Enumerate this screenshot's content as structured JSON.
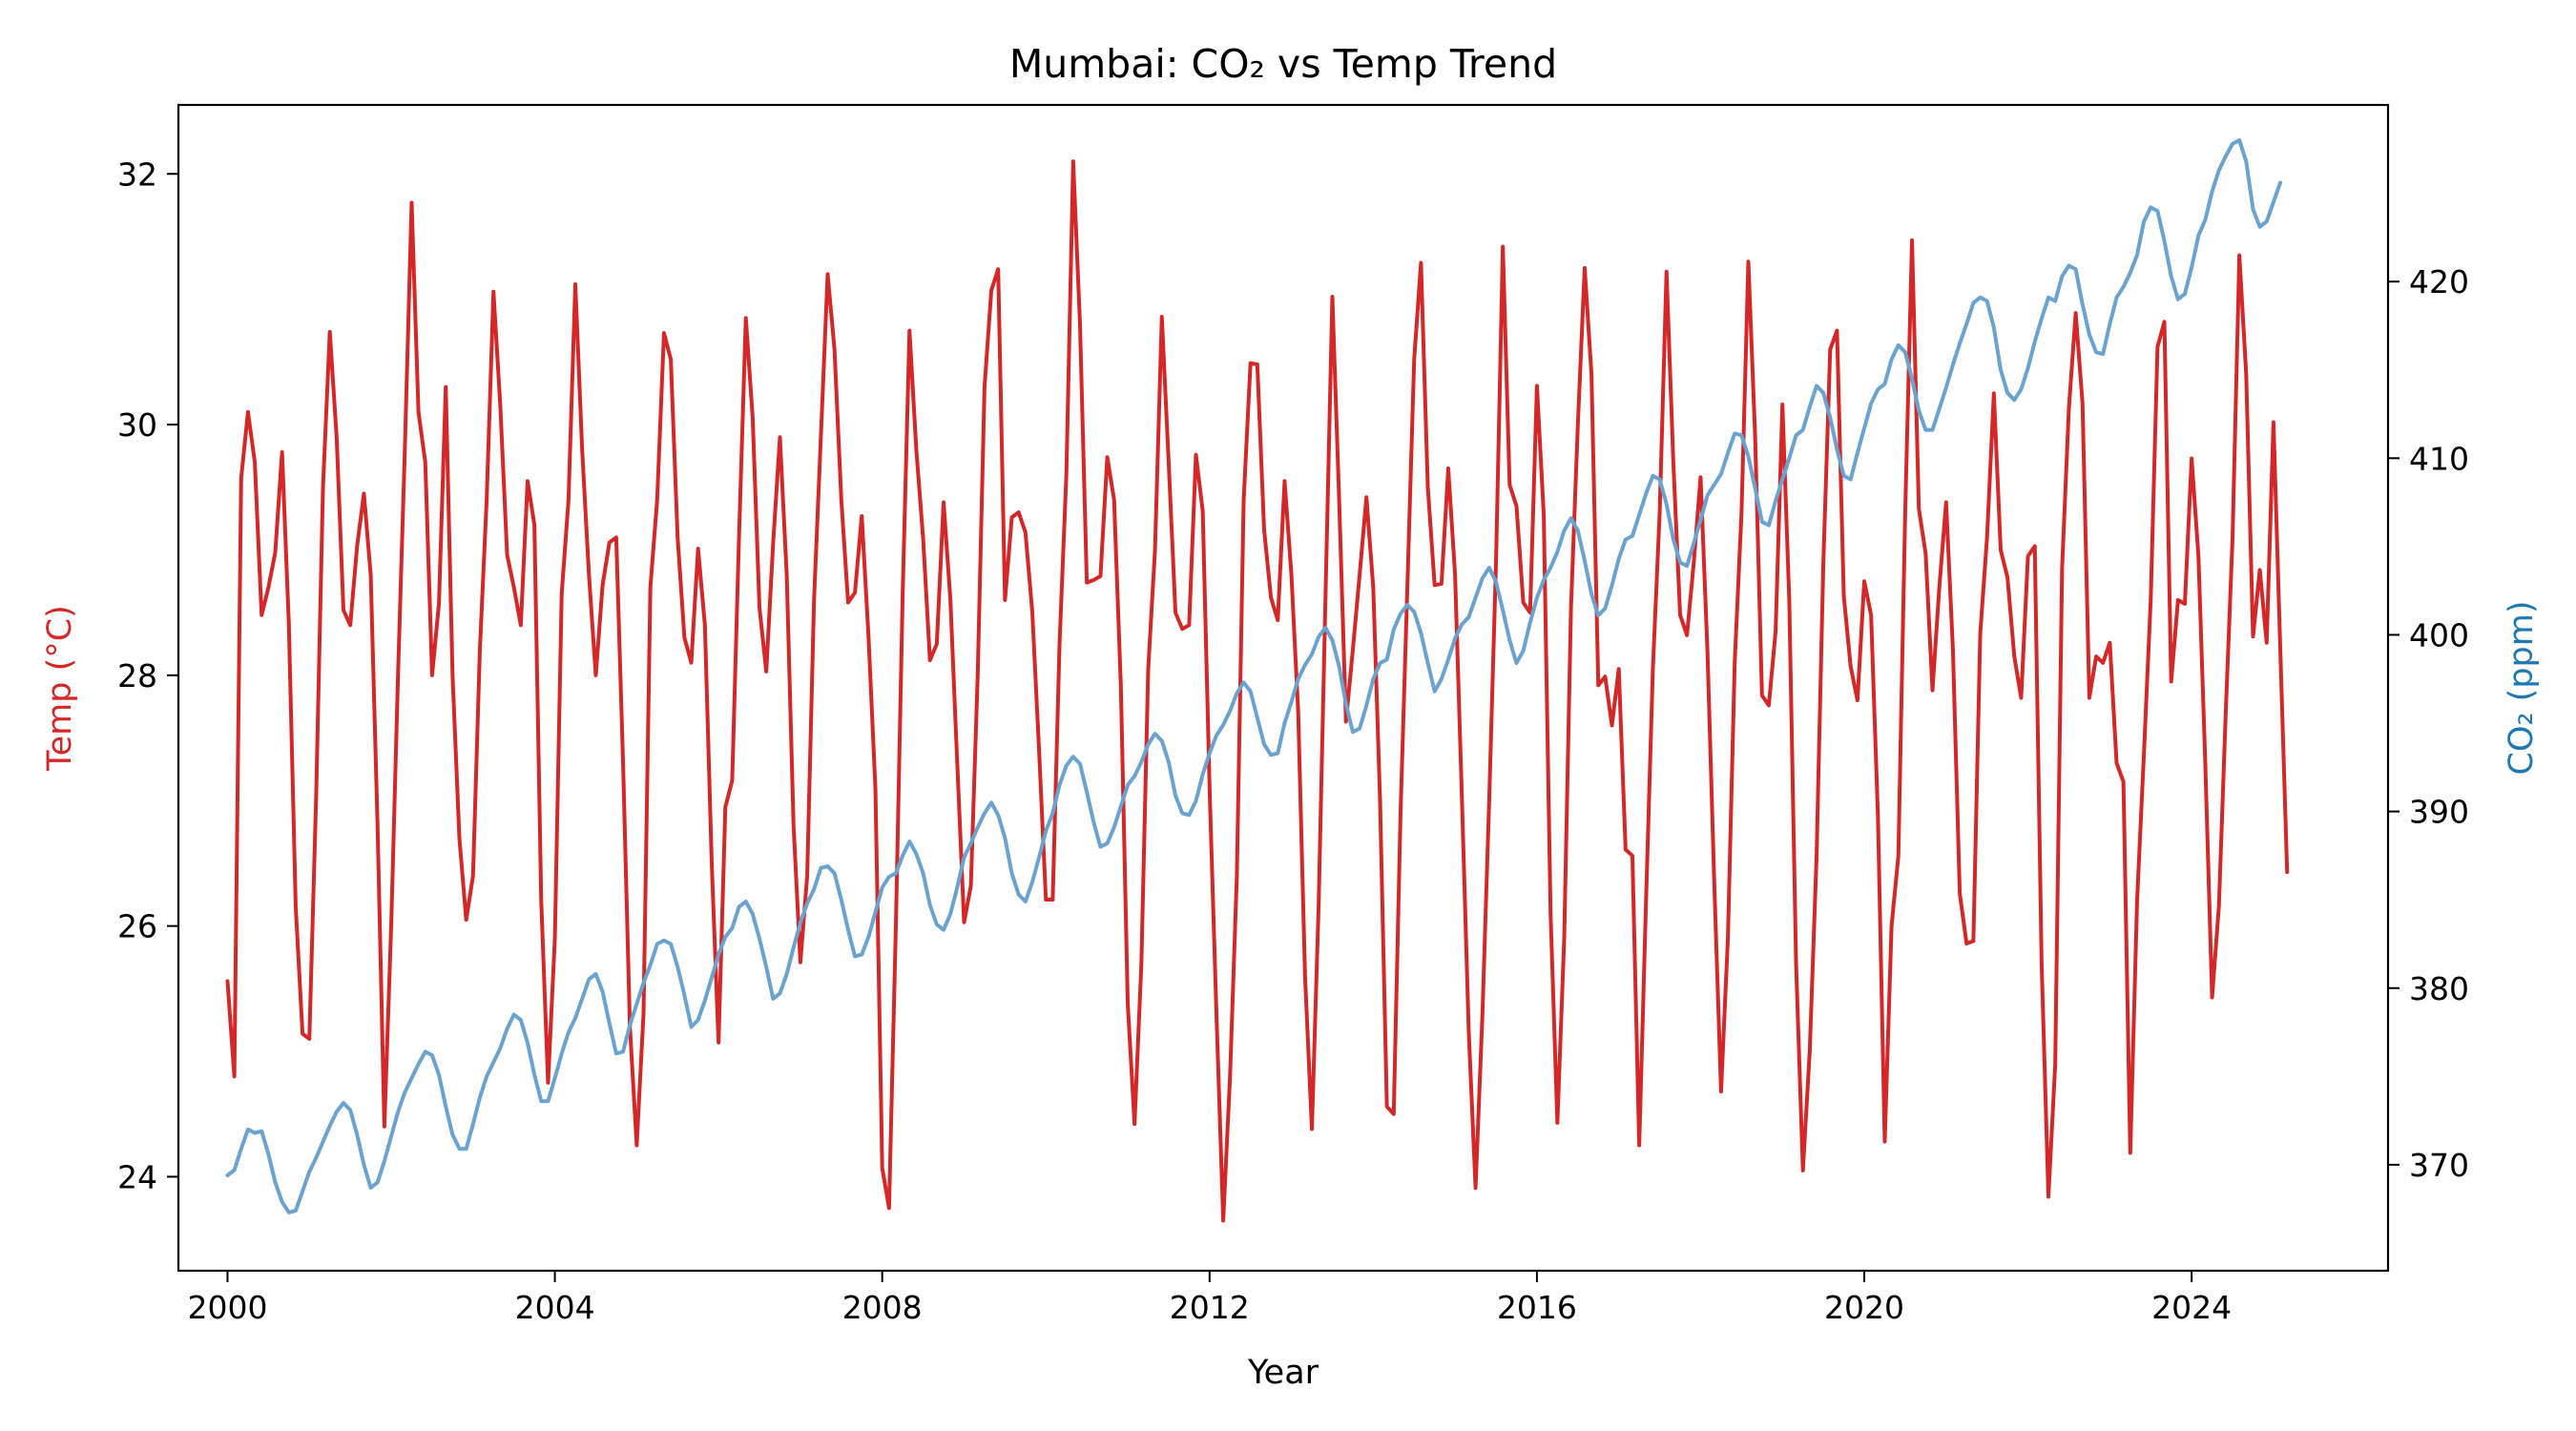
{
  "chart_data": {
    "type": "line",
    "title": "Mumbai: CO₂ vs Temp Trend",
    "xlabel": "Year",
    "ylabel_left": "Temp (°C)",
    "ylabel_right": "CO₂ (ppm)",
    "x_ticks": [
      2000,
      2004,
      2008,
      2012,
      2016,
      2020,
      2024
    ],
    "y_left_ticks": [
      24,
      26,
      28,
      30,
      32
    ],
    "y_right_ticks": [
      370,
      380,
      390,
      400,
      410,
      420
    ],
    "xlim": [
      1999.4,
      2026.4
    ],
    "ylim_left": [
      23.25,
      32.55
    ],
    "ylim_right": [
      364,
      430
    ],
    "grid": false,
    "colors": {
      "temp": "#d62728",
      "co2": "#6aa3cf"
    },
    "series": [
      {
        "axis": "left",
        "start_year": 2000,
        "step": "monthly",
        "values": [
          25.56,
          24.8,
          29.57,
          30.1,
          29.7,
          28.48,
          28.7,
          28.98,
          29.78,
          28.4,
          26.15,
          25.14,
          25.1,
          27.04,
          29.5,
          30.74,
          29.9,
          28.52,
          28.4,
          29.03,
          29.45,
          28.8,
          26.8,
          24.4,
          26.0,
          28.0,
          29.8,
          31.77,
          30.1,
          29.7,
          28.0,
          28.57,
          30.3,
          28.0,
          26.7,
          26.05,
          26.4,
          28.2,
          29.4,
          31.06,
          30.15,
          28.96,
          28.7,
          28.4,
          29.55,
          29.2,
          26.2,
          24.75,
          25.9,
          28.65,
          29.4,
          31.12,
          29.8,
          28.8,
          28.0,
          28.72,
          29.06,
          29.1,
          27.3,
          25.2,
          24.25,
          25.3,
          28.7,
          29.4,
          30.73,
          30.52,
          29.1,
          28.3,
          28.1,
          29.01,
          28.4,
          26.5,
          25.07,
          26.95,
          27.16,
          29.1,
          30.85,
          30.06,
          28.54,
          28.03,
          29.05,
          29.9,
          28.8,
          26.8,
          25.71,
          26.4,
          28.6,
          29.9,
          31.2,
          30.6,
          29.4,
          28.58,
          28.66,
          29.27,
          28.3,
          27.1,
          24.07,
          23.75,
          26.0,
          28.65,
          30.75,
          29.8,
          29.09,
          28.12,
          28.25,
          29.38,
          28.6,
          27.3,
          26.03,
          26.32,
          28.0,
          30.3,
          31.07,
          31.24,
          28.6,
          29.26,
          29.3,
          29.14,
          28.51,
          27.4,
          26.21,
          26.21,
          28.25,
          29.6,
          32.1,
          30.8,
          28.74,
          28.76,
          28.79,
          29.74,
          29.4,
          27.9,
          25.38,
          24.42,
          25.7,
          28.05,
          29.0,
          30.86,
          29.7,
          28.5,
          28.37,
          28.4,
          29.76,
          29.31,
          27.1,
          25.31,
          23.65,
          24.8,
          26.4,
          29.4,
          30.49,
          30.48,
          29.16,
          28.62,
          28.44,
          29.55,
          28.8,
          27.7,
          25.6,
          24.38,
          26.18,
          28.63,
          31.02,
          29.4,
          27.63,
          28.2,
          28.8,
          29.42,
          28.7,
          27.0,
          24.56,
          24.5,
          26.9,
          28.7,
          30.52,
          31.29,
          29.5,
          28.72,
          28.73,
          29.65,
          28.8,
          27.02,
          25.16,
          23.91,
          25.28,
          27.0,
          28.9,
          31.42,
          29.52,
          29.35,
          28.58,
          28.5,
          30.31,
          29.28,
          26.1,
          24.43,
          25.9,
          28.55,
          30.0,
          31.25,
          30.4,
          27.92,
          27.99,
          27.6,
          28.05,
          26.61,
          26.56,
          24.25,
          26.2,
          28.05,
          29.3,
          31.22,
          29.7,
          28.48,
          28.32,
          28.9,
          29.58,
          28.2,
          26.35,
          24.68,
          25.9,
          28.1,
          29.3,
          31.3,
          29.9,
          27.84,
          27.76,
          28.35,
          30.16,
          28.6,
          25.7,
          24.05,
          25.0,
          26.55,
          28.9,
          30.6,
          30.75,
          28.63,
          28.07,
          27.8,
          28.75,
          28.48,
          26.88,
          24.28,
          26.0,
          26.56,
          29.3,
          31.47,
          29.33,
          28.97,
          27.88,
          28.7,
          29.38,
          28.2,
          26.26,
          25.86,
          25.88,
          28.33,
          29.1,
          30.25,
          29.0,
          28.78,
          28.15,
          27.82,
          28.95,
          29.03,
          25.71,
          23.84,
          24.9,
          28.85,
          30.13,
          30.89,
          30.17,
          27.82,
          28.15,
          28.1,
          28.26,
          27.3,
          27.15,
          24.19,
          26.2,
          27.37,
          28.6,
          30.62,
          30.82,
          27.95,
          28.6,
          28.57,
          29.73,
          28.95,
          27.3,
          25.43,
          26.16,
          27.7,
          29.1,
          31.35,
          30.4,
          28.31,
          28.84,
          28.26,
          30.02,
          28.21,
          26.43
        ]
      },
      {
        "axis": "right",
        "start_year": 2000,
        "step": "monthly",
        "values": [
          369.4,
          369.7,
          370.9,
          372.0,
          371.8,
          371.9,
          370.6,
          369.0,
          367.9,
          367.3,
          367.4,
          368.5,
          369.6,
          370.4,
          371.3,
          372.2,
          373.0,
          373.5,
          373.1,
          371.7,
          370.0,
          368.7,
          369.0,
          370.2,
          371.6,
          373.0,
          374.1,
          374.9,
          375.7,
          376.4,
          376.2,
          375.1,
          373.3,
          371.7,
          370.9,
          370.9,
          372.3,
          373.8,
          375.0,
          375.8,
          376.6,
          377.7,
          378.5,
          378.2,
          376.9,
          375.1,
          373.6,
          373.6,
          374.9,
          376.3,
          377.5,
          378.3,
          379.4,
          380.5,
          380.8,
          379.8,
          378.0,
          376.3,
          376.4,
          377.9,
          379.1,
          380.3,
          381.3,
          382.5,
          382.7,
          382.5,
          381.2,
          379.6,
          377.8,
          378.2,
          379.3,
          380.6,
          381.9,
          382.9,
          383.4,
          384.6,
          384.9,
          384.2,
          382.8,
          381.2,
          379.4,
          379.7,
          380.8,
          382.3,
          383.7,
          384.8,
          385.6,
          386.8,
          386.9,
          386.5,
          385.0,
          383.3,
          381.8,
          381.9,
          382.9,
          384.3,
          385.7,
          386.3,
          386.5,
          387.5,
          388.3,
          387.6,
          386.5,
          384.7,
          383.6,
          383.3,
          384.2,
          385.7,
          387.4,
          388.2,
          389.1,
          389.9,
          390.5,
          389.8,
          388.5,
          386.5,
          385.3,
          384.9,
          386.0,
          387.4,
          388.9,
          389.9,
          391.5,
          392.6,
          393.1,
          392.7,
          391.1,
          389.4,
          388.0,
          388.2,
          389.1,
          390.3,
          391.5,
          392.0,
          392.8,
          393.8,
          394.4,
          394.0,
          392.8,
          390.9,
          389.9,
          389.8,
          390.6,
          392.1,
          393.3,
          394.3,
          394.9,
          395.7,
          396.7,
          397.3,
          396.8,
          395.3,
          393.8,
          393.2,
          393.3,
          395.0,
          396.2,
          397.5,
          398.3,
          398.9,
          399.9,
          400.4,
          399.7,
          398.2,
          396.1,
          394.5,
          394.7,
          396.0,
          397.5,
          398.4,
          398.6,
          400.3,
          401.2,
          401.7,
          401.3,
          400.1,
          398.4,
          396.8,
          397.5,
          398.6,
          399.8,
          400.6,
          401.0,
          402.1,
          403.2,
          403.8,
          403.0,
          401.4,
          399.7,
          398.4,
          399.1,
          400.7,
          402.1,
          403.1,
          403.8,
          404.7,
          405.9,
          406.6,
          405.9,
          404.2,
          402.3,
          401.1,
          401.5,
          402.8,
          404.3,
          405.4,
          405.6,
          406.8,
          408.0,
          409.0,
          408.8,
          407.4,
          405.4,
          404.1,
          403.9,
          405.2,
          406.5,
          407.9,
          408.5,
          409.1,
          410.3,
          411.4,
          411.3,
          410.1,
          408.3,
          406.4,
          406.2,
          407.6,
          408.8,
          410.0,
          411.3,
          411.6,
          412.9,
          414.1,
          413.7,
          412.3,
          410.5,
          409.0,
          408.8,
          410.3,
          411.7,
          413.1,
          413.9,
          414.2,
          415.6,
          416.4,
          416.0,
          414.5,
          412.7,
          411.6,
          411.6,
          412.8,
          414.0,
          415.3,
          416.5,
          417.6,
          418.8,
          419.1,
          418.9,
          417.4,
          415.0,
          413.7,
          413.3,
          413.9,
          415.1,
          416.6,
          417.9,
          419.1,
          418.9,
          420.3,
          420.9,
          420.7,
          418.7,
          417.0,
          416.0,
          415.9,
          417.6,
          419.1,
          419.7,
          420.5,
          421.5,
          423.4,
          424.2,
          424.0,
          422.3,
          420.3,
          419.0,
          419.3,
          420.8,
          422.6,
          423.5,
          425.1,
          426.3,
          427.1,
          427.8,
          428.0,
          426.8,
          424.1,
          423.1,
          423.4,
          424.5,
          425.6
        ]
      }
    ]
  }
}
